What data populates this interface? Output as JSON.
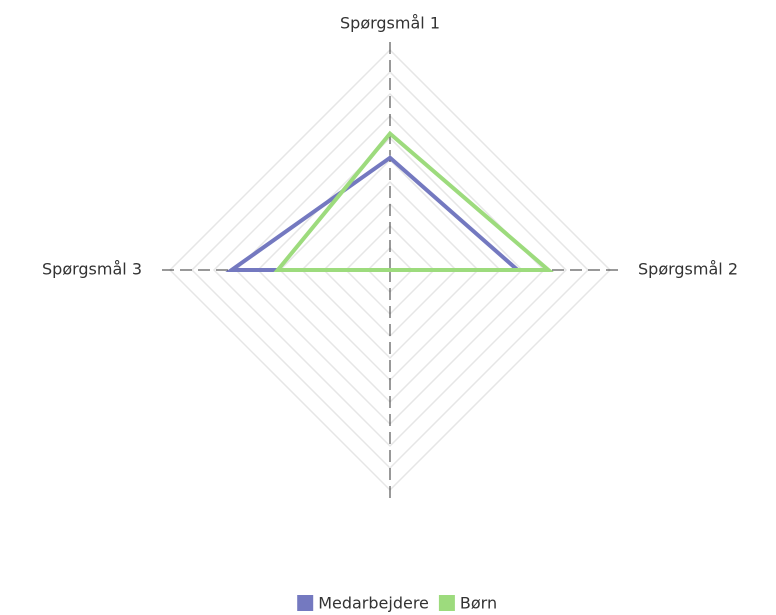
{
  "chart_data": {
    "type": "radar",
    "categories": [
      "Spørgsmål 1",
      "Spørgsmål 2",
      null,
      "Spørgsmål 3"
    ],
    "series": [
      {
        "name": "Medarbejdere",
        "color": "#7479c0",
        "values": [
          5.1,
          5.8,
          0,
          7.2
        ]
      },
      {
        "name": "Børn",
        "color": "#9ddb7d",
        "values": [
          6.2,
          7.2,
          0,
          5.1
        ]
      }
    ],
    "ylim": [
      0,
      10
    ],
    "yticks": [
      1,
      2,
      3,
      4,
      5,
      6,
      7,
      8,
      9,
      10
    ],
    "grid": true,
    "legend": "bottom"
  }
}
